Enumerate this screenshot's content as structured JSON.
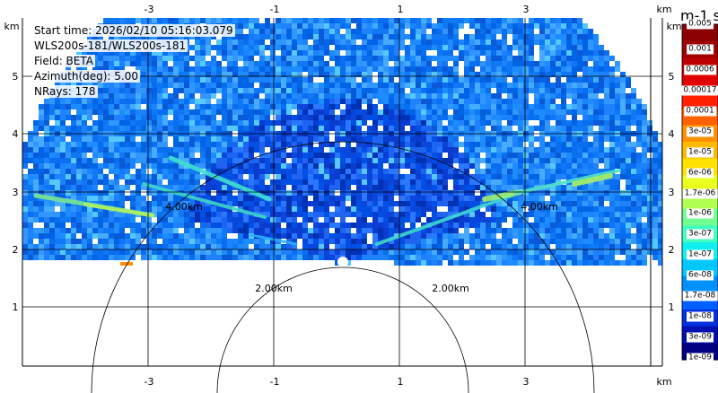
{
  "info": {
    "start_time": "Start time: 2026/02/10 05:16:03.079",
    "instrument": "WLS200s-181/WLS200s-181",
    "field": "Field: BETA",
    "azimuth": "Azimuth(deg): 5.00",
    "nrays": "NRays: 178"
  },
  "axes": {
    "x_unit": "km",
    "y_unit": "km",
    "x_ticks": [
      "-3",
      "-1",
      "1",
      "3"
    ],
    "y_ticks": [
      "5",
      "4",
      "3",
      "2",
      "1"
    ]
  },
  "range_rings": {
    "inner": "2.00km",
    "outer": "4.00km"
  },
  "colorbar": {
    "title": "m-1 sr-1",
    "top_label": "0.005",
    "labels": [
      "0.001",
      "0.0006",
      "0.00017",
      "0.0001",
      "3e-05",
      "1e-05",
      "6e-06",
      "1.7e-06",
      "1e-06",
      "3e-07",
      "1e-07",
      "6e-08",
      "1.7e-08",
      "1e-08",
      "3e-09",
      "1e-09"
    ],
    "colors": [
      "#8b0000",
      "#a00000",
      "#bf0000",
      "#e00000",
      "#ff2000",
      "#ff6000",
      "#ff9000",
      "#ffb800",
      "#ffe000",
      "#e8ff20",
      "#b0ff50",
      "#70ff90",
      "#40ffc0",
      "#10f0f0",
      "#00c8ff",
      "#0090ff",
      "#0060ff",
      "#0030e0",
      "#0010b0",
      "#000080"
    ]
  }
}
